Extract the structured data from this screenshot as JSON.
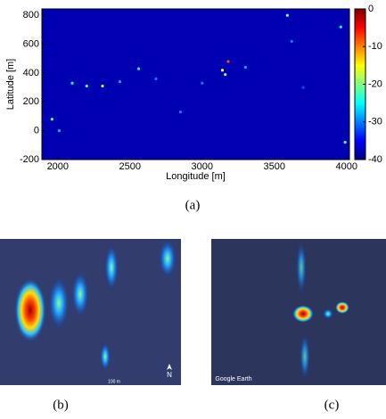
{
  "chart_data": {
    "type": "heatmap",
    "colormap": "jet",
    "xlabel": "Longitude [m]",
    "ylabel": "Latitude [m]",
    "xlim": [
      1890,
      4020
    ],
    "ylim": [
      -200,
      845
    ],
    "xticks": [
      2000,
      2500,
      3000,
      3500,
      4000
    ],
    "yticks": [
      -200,
      0,
      200,
      400,
      600,
      800
    ],
    "clim": [
      -40,
      0
    ],
    "cticks": [
      0,
      -10,
      -20,
      -30,
      -40
    ],
    "x": [
      1960,
      2010,
      2100,
      2200,
      2310,
      2430,
      2560,
      2680,
      2850,
      3000,
      3140,
      3180,
      3160,
      3300,
      3590,
      3620,
      3960,
      3990,
      3700
    ],
    "y": [
      80,
      0,
      330,
      310,
      310,
      340,
      430,
      360,
      130,
      330,
      420,
      480,
      390,
      440,
      800,
      620,
      720,
      -80,
      300
    ],
    "values": [
      -22,
      -28,
      -25,
      -22,
      -18,
      -28,
      -25,
      -30,
      -30,
      -30,
      -15,
      -8,
      -20,
      -28,
      -20,
      -30,
      -25,
      -22,
      -32
    ],
    "caption": "(a)"
  },
  "panels": [
    {
      "caption": "(b)",
      "north": "N",
      "scale": "100 m"
    },
    {
      "caption": "(c)",
      "credit": "Google Earth"
    }
  ]
}
